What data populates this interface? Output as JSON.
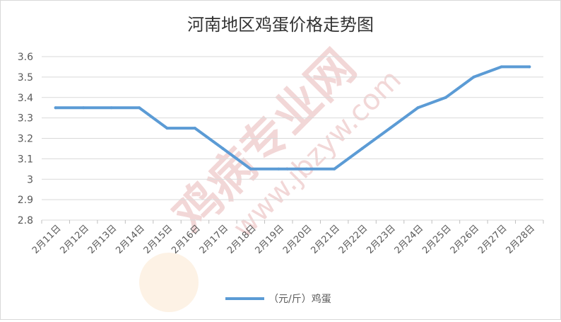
{
  "chart_data": {
    "type": "line",
    "title": "河南地区鸡蛋价格走势图",
    "xlabel": "",
    "ylabel": "",
    "categories": [
      "2月11日",
      "2月12日",
      "2月13日",
      "2月14日",
      "2月15日",
      "2月16日",
      "2月17日",
      "2月18日",
      "2月19日",
      "2月20日",
      "2月21日",
      "2月22日",
      "2月23日",
      "2月24日",
      "2月25日",
      "2月26日",
      "2月27日",
      "2月28日"
    ],
    "series": [
      {
        "name": "（元/斤）鸡蛋",
        "color": "#5b9bd5",
        "values": [
          3.35,
          3.35,
          3.35,
          3.35,
          3.25,
          3.25,
          3.15,
          3.05,
          3.05,
          3.05,
          3.05,
          3.15,
          3.25,
          3.35,
          3.4,
          3.5,
          3.55,
          3.55
        ]
      }
    ],
    "ylim": [
      2.8,
      3.6
    ],
    "yticks": [
      "2.8",
      "2.9",
      "3",
      "3.1",
      "3.2",
      "3.3",
      "3.4",
      "3.5",
      "3.6"
    ],
    "grid": true,
    "legend_position": "bottom",
    "watermark": {
      "brand": "鸡病专业网",
      "url": "www.jbzyw.com",
      "color": "#e8b8b8"
    }
  }
}
